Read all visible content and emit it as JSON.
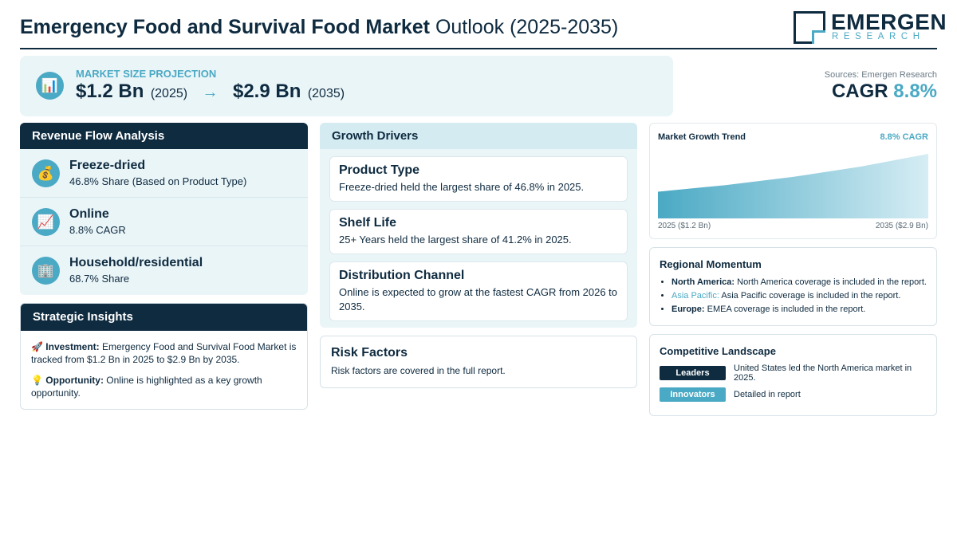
{
  "header": {
    "title_bold": "Emergency Food and Survival Food Market",
    "title_rest": " Outlook (2025-2035)",
    "logo_name": "EMERGEN",
    "logo_sub": "RESEARCH"
  },
  "projection": {
    "icon": "bar-chart-icon",
    "label": "MARKET SIZE PROJECTION",
    "start_value": "$1.2 Bn",
    "start_year": "(2025)",
    "arrow": "→",
    "end_value": "$2.9 Bn",
    "end_year": "(2035)"
  },
  "sources": "Sources: Emergen Research",
  "cagr": {
    "label": "CAGR ",
    "value": "8.8%"
  },
  "revenue": {
    "title": "Revenue Flow Analysis",
    "items": [
      {
        "icon": "money-bag-icon",
        "title": "Freeze-dried",
        "subtitle": "46.8% Share (Based on Product Type)"
      },
      {
        "icon": "trend-up-icon",
        "title": "Online",
        "subtitle": "8.8% CAGR"
      },
      {
        "icon": "building-icon",
        "title": "Household/residential",
        "subtitle": "68.7% Share"
      }
    ]
  },
  "insights": {
    "title": "Strategic Insights",
    "investment_label": "Investment:",
    "investment_text": " Emergency Food and Survival Food Market is tracked from $1.2 Bn in 2025 to $2.9 Bn by 2035.",
    "opportunity_label": "Opportunity:",
    "opportunity_text": " Online is highlighted as a key growth opportunity."
  },
  "drivers": {
    "title": "Growth Drivers",
    "cards": [
      {
        "title": "Product Type",
        "text": "Freeze-dried held the largest share of 46.8% in 2025."
      },
      {
        "title": "Shelf Life",
        "text": "25+ Years held the largest share of 41.2% in 2025."
      },
      {
        "title": "Distribution Channel",
        "text": "Online is expected to grow at the fastest CAGR from 2026 to 2035."
      }
    ]
  },
  "risk": {
    "title": "Risk Factors",
    "text": "Risk factors are covered in the full report."
  },
  "chart_data": {
    "type": "area",
    "title": "Market Growth Trend",
    "badge": "8.8% CAGR",
    "x": [
      2025,
      2035
    ],
    "x_labels": [
      "2025 ($1.2 Bn)",
      "2035 ($2.9 Bn)"
    ],
    "values": [
      1.2,
      2.9
    ],
    "unit": "USD Bn"
  },
  "regional": {
    "title": "Regional Momentum",
    "items": [
      {
        "label": "North America:",
        "text": " North America coverage is included in the report."
      },
      {
        "label": "Asia Pacific:",
        "text": " Asia Pacific coverage is included in the report."
      },
      {
        "label": "Europe:",
        "text": " EMEA coverage is included in the report."
      }
    ]
  },
  "competitive": {
    "title": "Competitive Landscape",
    "leaders_label": "Leaders",
    "leaders_text": "United States led the North America market in 2025.",
    "innovators_label": "Innovators",
    "innovators_text": "Detailed in report"
  },
  "colors": {
    "navy": "#0f2b40",
    "accent": "#4aa9c4",
    "panel_bg": "#eaf5f8"
  }
}
